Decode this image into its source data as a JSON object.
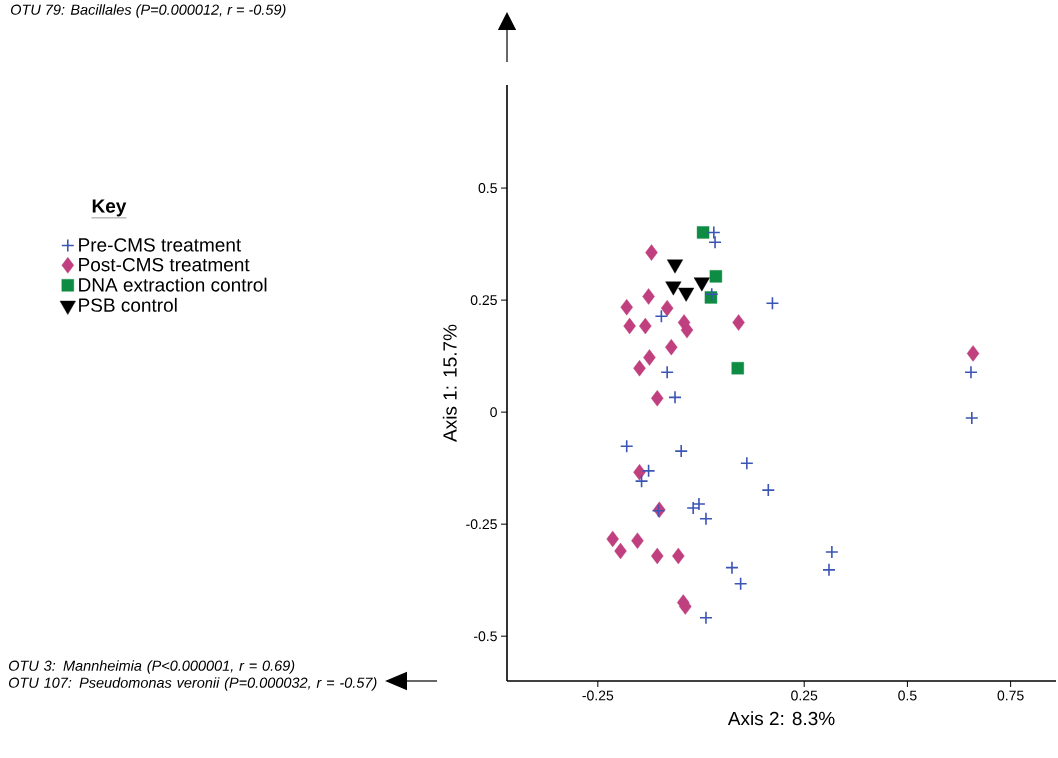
{
  "chart_data": {
    "type": "scatter",
    "xlabel": "Axis 2: 8.3%",
    "ylabel": "Axis 1: 15.7%",
    "legend_title": "Key",
    "xlim": [
      -0.47,
      0.86
    ],
    "ylim": [
      -0.6,
      0.73
    ],
    "xticks": [
      -0.25,
      0.25,
      0.5,
      0.75
    ],
    "yticks": [
      -0.5,
      -0.25,
      0,
      0.25,
      0.5
    ],
    "grid": false,
    "legend": "left",
    "annotations": [
      "OTU 79: Bacillales (P=0.000012, r = -0.59)",
      "OTU 3: Mannheimia (P<0.000001, r = 0.69)",
      "OTU 107: Pseudomonas veronii (P=0.000032, r = -0.57)"
    ],
    "series": [
      {
        "name": "Pre-CMS  treatment",
        "color": "#3a55b4",
        "marker": "cross",
        "x": [
          0.031,
          0.034,
          0.026,
          0.173,
          -0.096,
          -0.082,
          -0.063,
          -0.18,
          -0.048,
          0.111,
          0.163,
          -0.127,
          -0.144,
          -0.103,
          -0.019,
          -0.005,
          0.012,
          0.654,
          0.656,
          0.317,
          0.31,
          0.075,
          0.096,
          0.012
        ],
        "values": [
          0.401,
          0.379,
          0.263,
          0.243,
          0.214,
          0.089,
          0.033,
          -0.076,
          -0.087,
          -0.114,
          -0.174,
          -0.131,
          -0.154,
          -0.22,
          -0.214,
          -0.205,
          -0.238,
          0.089,
          -0.013,
          -0.312,
          -0.352,
          -0.347,
          -0.383,
          -0.459
        ]
      },
      {
        "name": "Post-CMS  treatment",
        "color": "#c0407f",
        "marker": "diamond",
        "x": [
          -0.12,
          -0.127,
          -0.18,
          -0.082,
          -0.173,
          -0.135,
          -0.041,
          -0.034,
          0.091,
          -0.072,
          -0.125,
          -0.149,
          -0.106,
          0.659,
          -0.149,
          -0.101,
          -0.214,
          -0.195,
          -0.154,
          -0.106,
          -0.055,
          -0.043,
          -0.038
        ],
        "values": [
          0.356,
          0.258,
          0.234,
          0.232,
          0.192,
          0.192,
          0.2,
          0.183,
          0.2,
          0.145,
          0.122,
          0.098,
          0.031,
          0.131,
          -0.134,
          -0.218,
          -0.283,
          -0.31,
          -0.287,
          -0.321,
          -0.321,
          -0.425,
          -0.434
        ]
      },
      {
        "name": "DNA extraction control",
        "color": "#0e8c43",
        "marker": "square",
        "x": [
          0.005,
          0.036,
          0.024,
          0.089
        ],
        "values": [
          0.401,
          0.303,
          0.256,
          0.098
        ]
      },
      {
        "name": "PSB control",
        "color": "#000000",
        "marker": "triangle",
        "x": [
          -0.063,
          -0.067,
          -0.036,
          0.002
        ],
        "values": [
          0.33,
          0.281,
          0.267,
          0.29
        ]
      }
    ]
  }
}
